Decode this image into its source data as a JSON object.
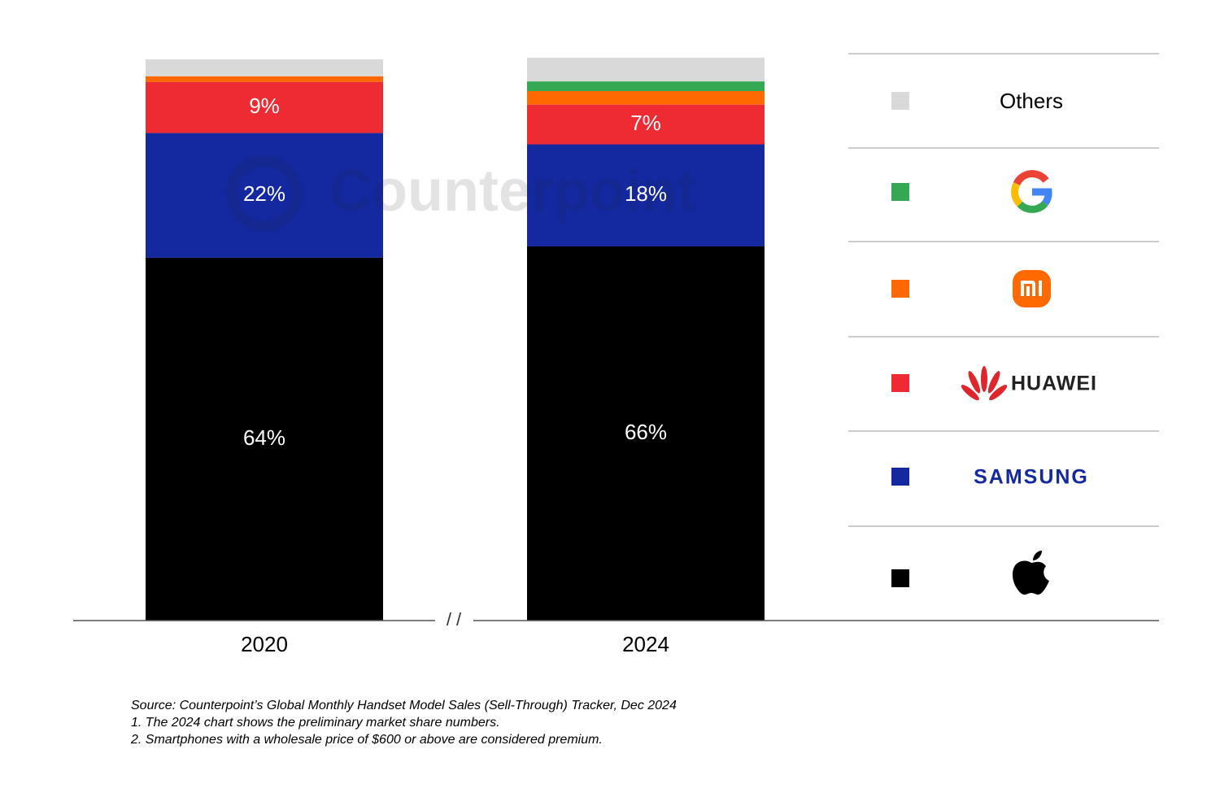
{
  "chart_data": {
    "type": "stacked_bar",
    "watermark": "Counterpoint",
    "categories": [
      "2020",
      "2024"
    ],
    "ylim": [
      0,
      100
    ],
    "axis_break": "/ /",
    "series": [
      {
        "name": "",
        "color": "#000000",
        "values": [
          64,
          66
        ],
        "value_labels": [
          "64%",
          "66%"
        ]
      },
      {
        "name": "SAMSUNG",
        "color": "#1428a0",
        "values": [
          22,
          18
        ],
        "value_labels": [
          "22%",
          "18%"
        ]
      },
      {
        "name": "HUAWEI",
        "color": "#ee2a32",
        "values": [
          9,
          7
        ],
        "value_labels": [
          "9%",
          "7%"
        ]
      },
      {
        "name": "",
        "color": "#ff6900",
        "values": [
          1,
          2.4
        ],
        "value_labels": [
          null,
          null
        ]
      },
      {
        "name": "",
        "color": "#34a853",
        "values": [
          0,
          1.7
        ],
        "value_labels": [
          null,
          null
        ]
      },
      {
        "name": "Others",
        "color": "#d9d9d9",
        "values": [
          3,
          4.2
        ],
        "value_labels": [
          null,
          null
        ]
      }
    ],
    "footnotes": [
      "Source: Counterpoint’s Global Monthly Handset Model Sales (Sell-Through) Tracker, Dec 2024",
      "1. The 2024 chart shows the preliminary market share numbers.",
      "2. Smartphones with a wholesale price of $600 or above are considered premium."
    ]
  }
}
